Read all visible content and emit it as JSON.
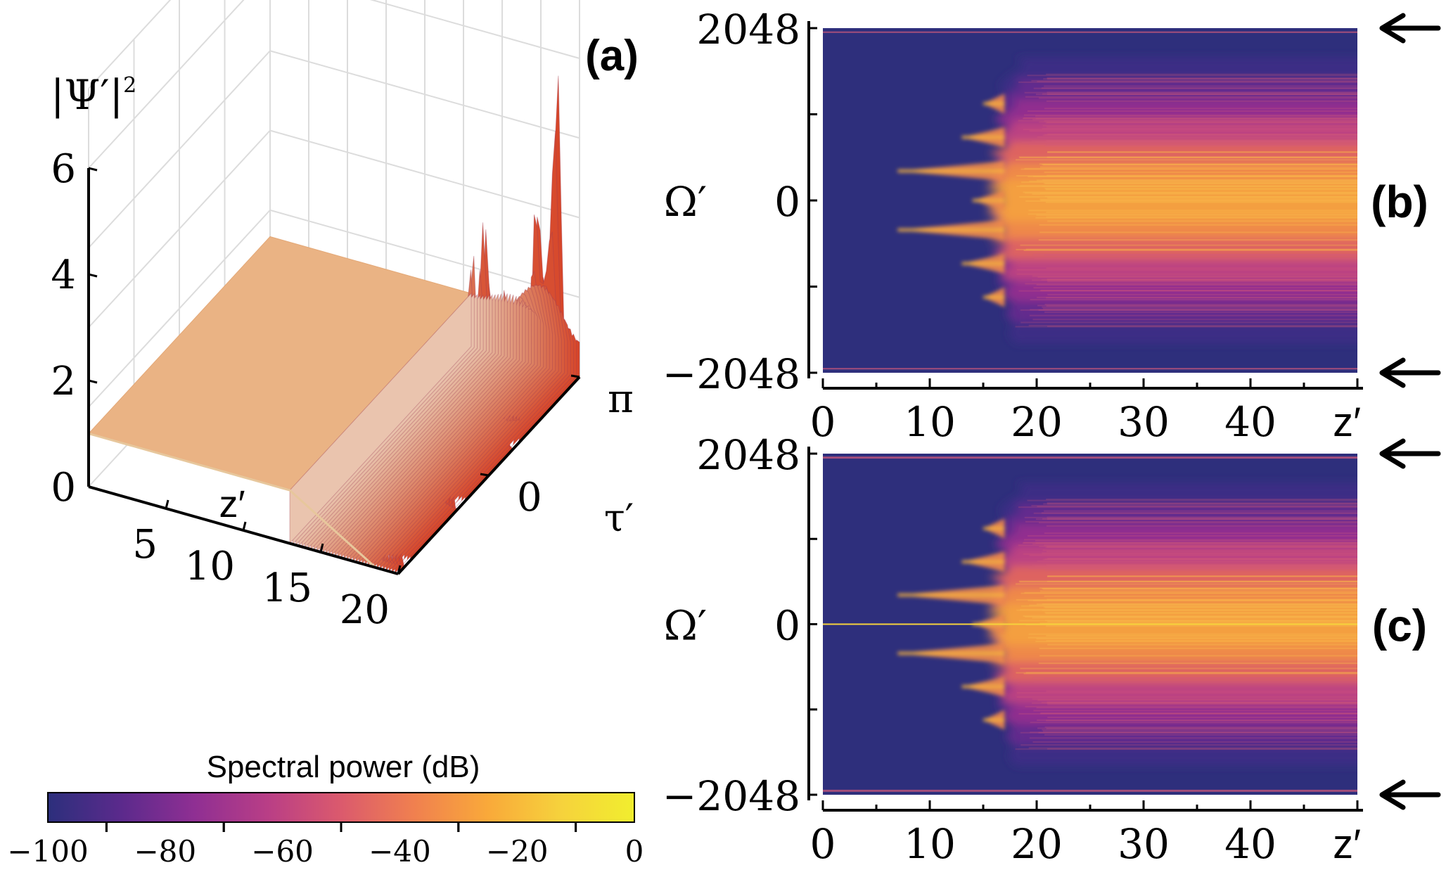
{
  "chart_data": [
    {
      "id": "a",
      "type": "surface",
      "panel_label": "(a)",
      "zlabel": "|Ψ′|",
      "zlabel_exponent": "2",
      "xlabel": "z′",
      "ylabel": "τ′",
      "zticks": [
        "0",
        "2",
        "4",
        "6"
      ],
      "zlim": [
        0,
        6
      ],
      "xticks": [
        "5",
        "10",
        "15",
        "20"
      ],
      "xlim": [
        0,
        20
      ],
      "yticks": [
        "0",
        "π"
      ],
      "baseline": 1.0,
      "instability_onset_z": 13,
      "peaks": [
        {
          "z": 17.6,
          "tau": -0.4,
          "h": 3.4
        },
        {
          "z": 18.0,
          "tau": 0.5,
          "h": 3.6
        },
        {
          "z": 18.4,
          "tau": -0.2,
          "h": 3.2
        },
        {
          "z": 18.9,
          "tau": 1.2,
          "h": 3.1
        },
        {
          "z": 19.3,
          "tau": 0.2,
          "h": 3.5
        },
        {
          "z": 19.7,
          "tau": 1.8,
          "h": 4.3
        },
        {
          "z": 20.0,
          "tau": 2.4,
          "h": 5.5
        }
      ]
    },
    {
      "id": "b",
      "type": "heatmap",
      "panel_label": "(b)",
      "ylabel": "Ω′",
      "xlabel": "z′",
      "xticks": [
        "0",
        "10",
        "20",
        "30",
        "40"
      ],
      "xlim": [
        0,
        50
      ],
      "yticks": [
        "2048",
        "0",
        "−2048"
      ],
      "ylim": [
        -2048,
        2048
      ],
      "arrows_at": [
        2048,
        -2048
      ],
      "pump_line": false,
      "onset_z": 7,
      "lobes": [
        {
          "omega": 350,
          "z_start": 7
        },
        {
          "omega": -350,
          "z_start": 7
        },
        {
          "omega": 750,
          "z_start": 13
        },
        {
          "omega": -750,
          "z_start": 13
        },
        {
          "omega": 1150,
          "z_start": 15
        },
        {
          "omega": -1150,
          "z_start": 15
        },
        {
          "omega": 0,
          "z_start": 14
        }
      ]
    },
    {
      "id": "c",
      "type": "heatmap",
      "panel_label": "(c)",
      "ylabel": "Ω′",
      "xlabel": "z′",
      "xticks": [
        "0",
        "10",
        "20",
        "30",
        "40"
      ],
      "xlim": [
        0,
        50
      ],
      "yticks": [
        "2048",
        "0",
        "−2048"
      ],
      "ylim": [
        -2048,
        2048
      ],
      "arrows_at": [
        2048,
        -2048
      ],
      "pump_line": true,
      "onset_z": 7,
      "lobes": [
        {
          "omega": 350,
          "z_start": 7
        },
        {
          "omega": -350,
          "z_start": 7
        },
        {
          "omega": 750,
          "z_start": 13
        },
        {
          "omega": -750,
          "z_start": 13
        },
        {
          "omega": 1150,
          "z_start": 15
        },
        {
          "omega": -1150,
          "z_start": 15
        },
        {
          "omega": 0,
          "z_start": 14
        }
      ]
    }
  ],
  "colorbar": {
    "title": "Spectral power (dB)",
    "ticks": [
      "−100",
      "−80",
      "−60",
      "−40",
      "−20",
      "0"
    ],
    "range": [
      -100,
      0
    ],
    "colormap": "plasma",
    "colors": [
      "#2c2f7c",
      "#5b2a8c",
      "#8f2f93",
      "#b93e86",
      "#db5a6d",
      "#f0804f",
      "#f9a93a",
      "#f6d23c",
      "#f1ee2e"
    ]
  }
}
